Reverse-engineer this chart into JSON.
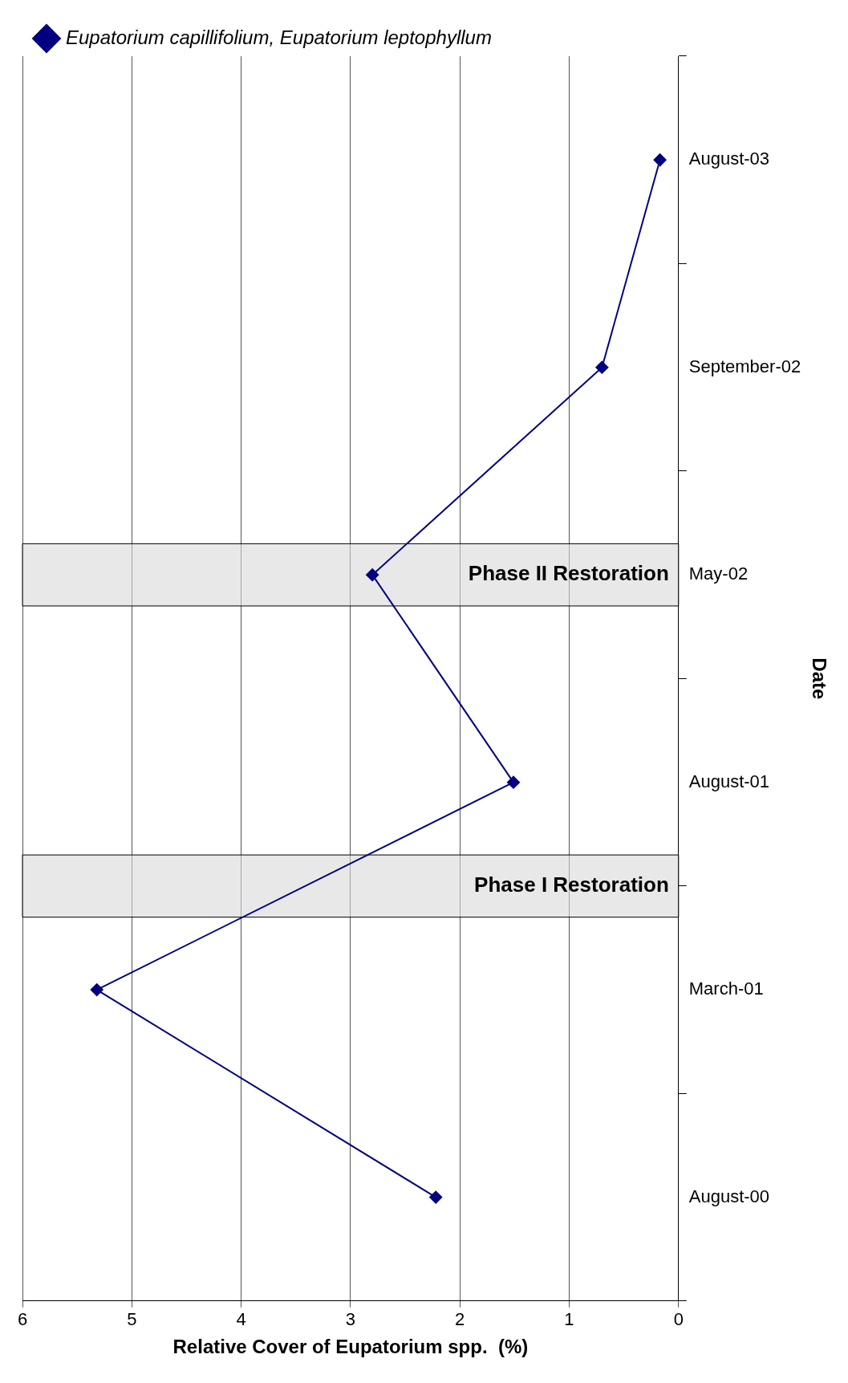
{
  "chart_data": {
    "type": "line",
    "orientation": "horizontal",
    "xlabel": "Relative Cover of Eupatorium spp.  (%)",
    "ylabel": "Date",
    "categories": [
      "August-03",
      "September-02",
      "May-02",
      "August-01",
      "March-01",
      "August-00"
    ],
    "series": [
      {
        "name": "Eupatorium capillifolium, Eupatorium leptophyllum",
        "color": "#000080",
        "values": [
          0.17,
          0.7,
          2.8,
          1.51,
          5.32,
          2.22
        ]
      }
    ],
    "xlim": [
      6,
      0
    ],
    "xticks": [
      6,
      5,
      4,
      3,
      2,
      1,
      0
    ],
    "grid": "x",
    "legend": "top left",
    "marker": "diamond",
    "line_style": "solid",
    "bands": [
      {
        "axis": "y",
        "from": "May-02",
        "to": "May-02",
        "label": "Phase II Restoration",
        "color": "#d9d9d9"
      },
      {
        "axis": "y",
        "from": "March-01",
        "to": "August-01",
        "label": "Phase I Restoration",
        "color": "#d9d9d9"
      }
    ]
  }
}
